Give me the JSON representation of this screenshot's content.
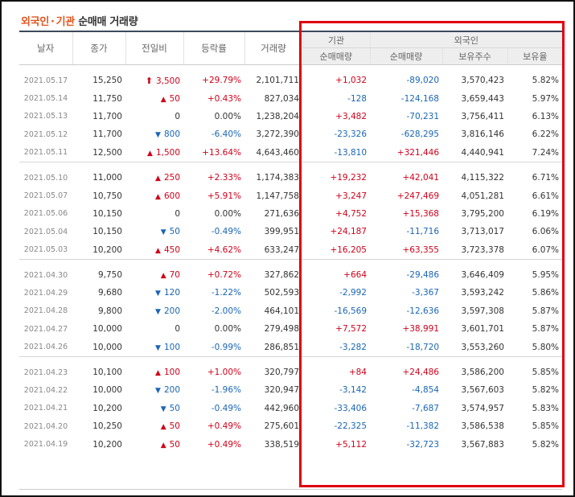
{
  "title": {
    "part1": "외국인",
    "sep": "·",
    "part2": "기관",
    "part3": "순매매 거래량"
  },
  "headers": {
    "date": "날자",
    "close": "종가",
    "change": "전일비",
    "rate": "등락률",
    "volume": "거래량",
    "inst_group": "기관",
    "foreign_group": "외국인",
    "inst_net": "순매매량",
    "foreign_net": "순매매량",
    "foreign_hold": "보유주수",
    "foreign_ratio": "보유율"
  },
  "colors": {
    "up": "#d0021b",
    "down": "#1a66b5",
    "highlight": "#e0000f",
    "title_accent": "#e0561e"
  },
  "rows": [
    {
      "date": "2021.05.17",
      "close": "15,250",
      "dir": "limit",
      "change": "3,500",
      "rate": "+29.79%",
      "volume": "2,101,711",
      "inst": "+1,032",
      "frgn": "-89,020",
      "hold": "3,570,423",
      "ratio": "5.82%"
    },
    {
      "date": "2021.05.14",
      "close": "11,750",
      "dir": "up",
      "change": "50",
      "rate": "+0.43%",
      "volume": "827,034",
      "inst": "-128",
      "frgn": "-124,168",
      "hold": "3,659,443",
      "ratio": "5.97%"
    },
    {
      "date": "2021.05.13",
      "close": "11,700",
      "dir": "none",
      "change": "0",
      "rate": "0.00%",
      "volume": "1,238,204",
      "inst": "+3,482",
      "frgn": "-70,231",
      "hold": "3,756,411",
      "ratio": "6.13%"
    },
    {
      "date": "2021.05.12",
      "close": "11,700",
      "dir": "down",
      "change": "800",
      "rate": "-6.40%",
      "volume": "3,272,390",
      "inst": "-23,326",
      "frgn": "-628,295",
      "hold": "3,816,146",
      "ratio": "6.22%"
    },
    {
      "date": "2021.05.11",
      "close": "12,500",
      "dir": "up",
      "change": "1,500",
      "rate": "+13.64%",
      "volume": "4,643,460",
      "inst": "-13,810",
      "frgn": "+321,446",
      "hold": "4,440,941",
      "ratio": "7.24%"
    },
    {
      "date": "2021.05.10",
      "close": "11,000",
      "dir": "up",
      "change": "250",
      "rate": "+2.33%",
      "volume": "1,174,383",
      "inst": "+19,232",
      "frgn": "+42,041",
      "hold": "4,115,322",
      "ratio": "6.71%"
    },
    {
      "date": "2021.05.07",
      "close": "10,750",
      "dir": "up",
      "change": "600",
      "rate": "+5.91%",
      "volume": "1,147,758",
      "inst": "+3,247",
      "frgn": "+247,469",
      "hold": "4,051,281",
      "ratio": "6.61%"
    },
    {
      "date": "2021.05.06",
      "close": "10,150",
      "dir": "none",
      "change": "0",
      "rate": "0.00%",
      "volume": "271,636",
      "inst": "+4,752",
      "frgn": "+15,368",
      "hold": "3,795,200",
      "ratio": "6.19%"
    },
    {
      "date": "2021.05.04",
      "close": "10,150",
      "dir": "down",
      "change": "50",
      "rate": "-0.49%",
      "volume": "399,951",
      "inst": "+24,187",
      "frgn": "-11,716",
      "hold": "3,713,017",
      "ratio": "6.06%"
    },
    {
      "date": "2021.05.03",
      "close": "10,200",
      "dir": "up",
      "change": "450",
      "rate": "+4.62%",
      "volume": "633,247",
      "inst": "+16,205",
      "frgn": "+63,355",
      "hold": "3,723,378",
      "ratio": "6.07%"
    },
    {
      "date": "2021.04.30",
      "close": "9,750",
      "dir": "up",
      "change": "70",
      "rate": "+0.72%",
      "volume": "327,862",
      "inst": "+664",
      "frgn": "-29,486",
      "hold": "3,646,409",
      "ratio": "5.95%"
    },
    {
      "date": "2021.04.29",
      "close": "9,680",
      "dir": "down",
      "change": "120",
      "rate": "-1.22%",
      "volume": "502,593",
      "inst": "-2,992",
      "frgn": "-3,367",
      "hold": "3,593,242",
      "ratio": "5.86%"
    },
    {
      "date": "2021.04.28",
      "close": "9,800",
      "dir": "down",
      "change": "200",
      "rate": "-2.00%",
      "volume": "464,101",
      "inst": "-16,569",
      "frgn": "-12,636",
      "hold": "3,597,308",
      "ratio": "5.87%"
    },
    {
      "date": "2021.04.27",
      "close": "10,000",
      "dir": "none",
      "change": "0",
      "rate": "0.00%",
      "volume": "279,498",
      "inst": "+7,572",
      "frgn": "+38,991",
      "hold": "3,601,701",
      "ratio": "5.87%"
    },
    {
      "date": "2021.04.26",
      "close": "10,000",
      "dir": "down",
      "change": "100",
      "rate": "-0.99%",
      "volume": "286,851",
      "inst": "-3,282",
      "frgn": "-18,720",
      "hold": "3,553,260",
      "ratio": "5.80%"
    },
    {
      "date": "2021.04.23",
      "close": "10,100",
      "dir": "up",
      "change": "100",
      "rate": "+1.00%",
      "volume": "320,797",
      "inst": "+84",
      "frgn": "+24,486",
      "hold": "3,586,200",
      "ratio": "5.85%"
    },
    {
      "date": "2021.04.22",
      "close": "10,000",
      "dir": "down",
      "change": "200",
      "rate": "-1.96%",
      "volume": "320,947",
      "inst": "-3,142",
      "frgn": "-4,854",
      "hold": "3,567,603",
      "ratio": "5.82%"
    },
    {
      "date": "2021.04.21",
      "close": "10,200",
      "dir": "down",
      "change": "50",
      "rate": "-0.49%",
      "volume": "442,960",
      "inst": "-33,406",
      "frgn": "-7,687",
      "hold": "3,574,957",
      "ratio": "5.83%"
    },
    {
      "date": "2021.04.20",
      "close": "10,250",
      "dir": "up",
      "change": "50",
      "rate": "+0.49%",
      "volume": "275,601",
      "inst": "-22,325",
      "frgn": "-11,382",
      "hold": "3,586,538",
      "ratio": "5.85%"
    },
    {
      "date": "2021.04.19",
      "close": "10,200",
      "dir": "up",
      "change": "50",
      "rate": "+0.49%",
      "volume": "338,519",
      "inst": "+5,112",
      "frgn": "-32,723",
      "hold": "3,567,883",
      "ratio": "5.82%"
    }
  ]
}
